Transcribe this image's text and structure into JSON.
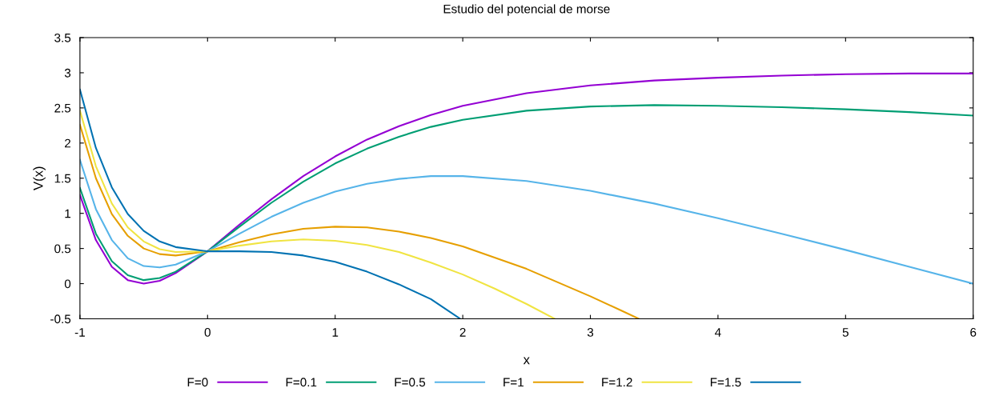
{
  "chart_data": {
    "type": "line",
    "title": "Estudio del potencial de morse",
    "xlabel": "x",
    "ylabel": "V(x)",
    "xlim": [
      -1,
      6
    ],
    "ylim": [
      -0.5,
      3.5
    ],
    "xticks": [
      -1,
      0,
      1,
      2,
      3,
      4,
      5,
      6
    ],
    "yticks": [
      -0.5,
      0,
      0.5,
      1,
      1.5,
      2,
      2.5,
      3,
      3.5
    ],
    "grid": false,
    "legend": "bottom",
    "marker": "none",
    "line_style": "solid",
    "series": [
      {
        "name": "F=0",
        "color": "#9400d3",
        "x": [
          -1,
          -0.875,
          -0.75,
          -0.625,
          -0.5,
          -0.375,
          -0.25,
          0,
          0.25,
          0.5,
          0.75,
          1,
          1.25,
          1.5,
          1.75,
          2,
          2.5,
          3,
          3.5,
          4,
          4.5,
          5,
          5.5,
          6
        ],
        "values": [
          1.26,
          0.62,
          0.24,
          0.05,
          0,
          0.04,
          0.15,
          0.46,
          0.84,
          1.2,
          1.53,
          1.81,
          2.05,
          2.24,
          2.4,
          2.53,
          2.71,
          2.82,
          2.89,
          2.93,
          2.96,
          2.98,
          2.99,
          2.99
        ]
      },
      {
        "name": "F=0.1",
        "color": "#009e73",
        "x": [
          -1,
          -0.875,
          -0.75,
          -0.625,
          -0.5,
          -0.375,
          -0.25,
          0,
          0.25,
          0.5,
          0.75,
          1,
          1.25,
          1.5,
          1.75,
          2,
          2.5,
          3,
          3.5,
          4,
          4.5,
          5,
          5.5,
          6
        ],
        "values": [
          1.36,
          0.71,
          0.32,
          0.12,
          0.05,
          0.08,
          0.17,
          0.46,
          0.81,
          1.15,
          1.45,
          1.71,
          1.92,
          2.09,
          2.23,
          2.33,
          2.46,
          2.52,
          2.54,
          2.53,
          2.51,
          2.48,
          2.44,
          2.39
        ]
      },
      {
        "name": "F=0.5",
        "color": "#56b4e9",
        "x": [
          -1,
          -0.875,
          -0.75,
          -0.625,
          -0.5,
          -0.375,
          -0.25,
          0,
          0.25,
          0.5,
          0.75,
          1,
          1.25,
          1.5,
          1.75,
          2,
          2.5,
          3,
          3.5,
          4,
          4.5,
          5,
          5.5,
          6
        ],
        "values": [
          1.76,
          1.06,
          0.62,
          0.36,
          0.25,
          0.23,
          0.27,
          0.46,
          0.71,
          0.95,
          1.15,
          1.31,
          1.42,
          1.49,
          1.53,
          1.53,
          1.46,
          1.32,
          1.14,
          0.93,
          0.71,
          0.48,
          0.24,
          0
        ]
      },
      {
        "name": "F=1",
        "color": "#e69f00",
        "x": [
          -1,
          -0.875,
          -0.75,
          -0.625,
          -0.5,
          -0.375,
          -0.25,
          0,
          0.25,
          0.5,
          0.75,
          1,
          1.25,
          1.5,
          1.75,
          2,
          2.5,
          3,
          3.25,
          3.38
        ],
        "values": [
          2.26,
          1.5,
          0.99,
          0.68,
          0.5,
          0.42,
          0.4,
          0.46,
          0.59,
          0.7,
          0.78,
          0.81,
          0.8,
          0.74,
          0.65,
          0.53,
          0.21,
          -0.18,
          -0.39,
          -0.5
        ]
      },
      {
        "name": "F=1.2",
        "color": "#f0e442",
        "x": [
          -1,
          -0.875,
          -0.75,
          -0.625,
          -0.5,
          -0.375,
          -0.25,
          0,
          0.25,
          0.5,
          0.75,
          1,
          1.25,
          1.5,
          1.75,
          2,
          2.25,
          2.5,
          2.72
        ],
        "values": [
          2.46,
          1.67,
          1.14,
          0.8,
          0.6,
          0.49,
          0.45,
          0.46,
          0.54,
          0.6,
          0.63,
          0.61,
          0.55,
          0.45,
          0.3,
          0.13,
          -0.07,
          -0.29,
          -0.5
        ]
      },
      {
        "name": "F=1.5",
        "color": "#0072b2",
        "x": [
          -1,
          -0.875,
          -0.75,
          -0.625,
          -0.5,
          -0.375,
          -0.25,
          0,
          0.25,
          0.5,
          0.75,
          1,
          1.25,
          1.5,
          1.75,
          1.98
        ],
        "values": [
          2.76,
          1.93,
          1.37,
          0.99,
          0.75,
          0.6,
          0.52,
          0.46,
          0.46,
          0.45,
          0.4,
          0.31,
          0.17,
          -0.01,
          -0.22,
          -0.5
        ]
      }
    ]
  }
}
